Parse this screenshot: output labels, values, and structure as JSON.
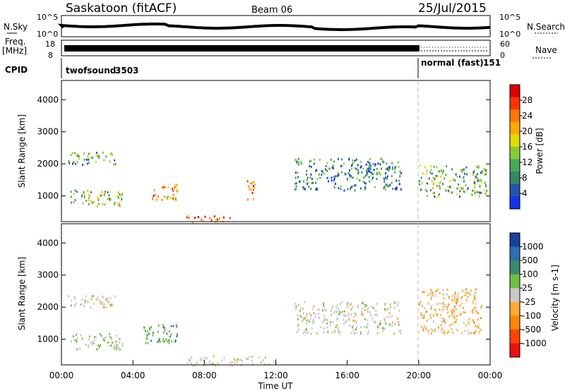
{
  "header": {
    "title": "Saskatoon (fitACF)",
    "beam": "Beam 06",
    "date": "25/Jul/2015"
  },
  "top_panels": {
    "nsky_label": "N.Sky",
    "nsky_ticks": [
      "10^5",
      "10^0"
    ],
    "nsearch_label": "N.Search",
    "nsearch_ticks": [
      "10^5",
      "10^0"
    ],
    "freq_label_line1": "Freq.",
    "freq_label_line2": "[MHz]",
    "freq_ticks": [
      "18",
      "8"
    ],
    "nave_label": "Nave",
    "nave_ticks": [
      "60",
      "0"
    ],
    "cpid_label": "CPID",
    "cpid_segments": [
      {
        "name": "twofsound",
        "id": "3503",
        "start_hour": 0,
        "end_hour": 20
      },
      {
        "name": "normal (fast)",
        "id": "151",
        "start_hour": 20,
        "end_hour": 24
      }
    ]
  },
  "colorbars": {
    "power": {
      "label": "Power [dB]",
      "ticks": [
        "28",
        "24",
        "20",
        "16",
        "12",
        "8",
        "4"
      ],
      "colors": [
        "#dd0000",
        "#ff3300",
        "#ff7700",
        "#ffaa00",
        "#dddd00",
        "#88cc33",
        "#44aa55",
        "#338866",
        "#2255aa",
        "#1133ee"
      ]
    },
    "velocity": {
      "label": "Velocity [m s-1]",
      "ticks": [
        "1000",
        "500",
        "100",
        "25",
        "-25",
        "-100",
        "-500",
        "-1000"
      ],
      "colors": [
        "#1a3fa0",
        "#2e6fb0",
        "#3a8a6a",
        "#6cc040",
        "#c8c8c8",
        "#ffaa33",
        "#ff8800",
        "#ff4400",
        "#ee1111"
      ]
    }
  },
  "chart_data": [
    {
      "type": "heatmap",
      "parameter": "Power",
      "xlabel": "",
      "ylabel": "Slant Range [km]",
      "xlim_hours": [
        0,
        24
      ],
      "ylim_km": [
        200,
        4600
      ],
      "yticks": [
        "4000",
        "3000",
        "2000",
        "1000"
      ],
      "clim_db": [
        0,
        32
      ],
      "echo_bands": [
        {
          "t0": 0.5,
          "t1": 3.5,
          "r0": 700,
          "r1": 1200,
          "mean": 14
        },
        {
          "t0": 0.3,
          "t1": 3.0,
          "r0": 2000,
          "r1": 2400,
          "mean": 10
        },
        {
          "t0": 5.0,
          "t1": 6.5,
          "r0": 900,
          "r1": 1400,
          "mean": 22
        },
        {
          "t0": 7.0,
          "t1": 9.5,
          "r0": 200,
          "r1": 400,
          "mean": 26
        },
        {
          "t0": 10.3,
          "t1": 10.8,
          "r0": 900,
          "r1": 1600,
          "mean": 24
        },
        {
          "t0": 13.0,
          "t1": 19.0,
          "r0": 1200,
          "r1": 2200,
          "mean": 8
        },
        {
          "t0": 20.0,
          "t1": 23.8,
          "r0": 1000,
          "r1": 2000,
          "mean": 12
        }
      ]
    },
    {
      "type": "heatmap",
      "parameter": "Velocity",
      "xlabel": "Time UT",
      "ylabel": "Slant Range [km]",
      "xlim_hours": [
        0,
        24
      ],
      "ylim_km": [
        200,
        4600
      ],
      "yticks": [
        "4000",
        "3000",
        "2000",
        "1000"
      ],
      "xticks": [
        "00:00",
        "04:00",
        "08:00",
        "12:00",
        "16:00",
        "20:00",
        "00:00"
      ],
      "clim_ms": [
        -1000,
        1000
      ],
      "echo_bands": [
        {
          "t0": 0.5,
          "t1": 3.5,
          "r0": 700,
          "r1": 1200,
          "mean": 80
        },
        {
          "t0": 0.3,
          "t1": 3.0,
          "r0": 2000,
          "r1": 2400,
          "mean": 0
        },
        {
          "t0": 4.5,
          "t1": 6.5,
          "r0": 900,
          "r1": 1500,
          "mean": 300
        },
        {
          "t0": 7.0,
          "t1": 12.0,
          "r0": 200,
          "r1": 500,
          "mean": -40
        },
        {
          "t0": 13.0,
          "t1": 19.0,
          "r0": 1200,
          "r1": 2200,
          "mean": 0
        },
        {
          "t0": 20.0,
          "t1": 23.5,
          "r0": 1200,
          "r1": 2600,
          "mean": -200
        }
      ]
    }
  ]
}
